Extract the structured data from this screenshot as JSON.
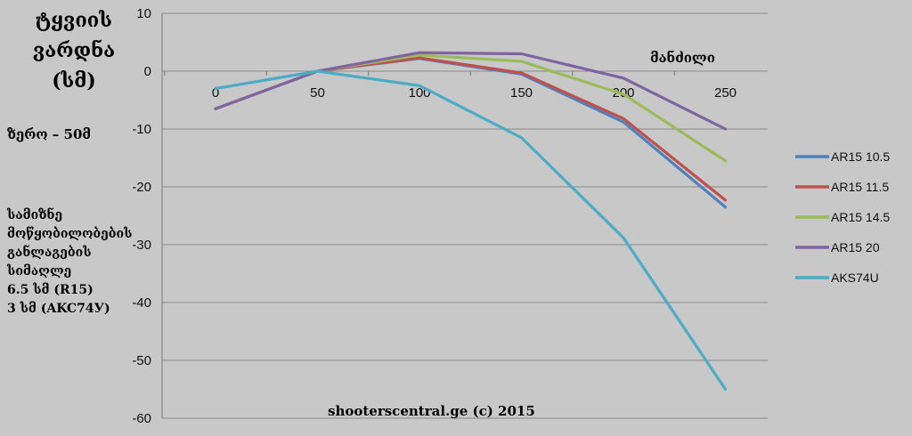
{
  "chart_data": {
    "type": "line",
    "title_lines": [
      "ტყვიის",
      "ვარდნა",
      "(სმ)"
    ],
    "xlabel": "მანძილი",
    "zero_note": "ზერო – 50მ",
    "sight_height_note": [
      "სამიზნე",
      "მოწყობილობების",
      "განლაგების",
      "სიმაღლე",
      "6.5 სმ (R15)",
      "3 სმ (AKC74У)"
    ],
    "credit": "shooterscentral.ge (c) 2015",
    "x": [
      0,
      50,
      100,
      150,
      200,
      250
    ],
    "xticks": [
      "0",
      "50",
      "100",
      "150",
      "200",
      "250"
    ],
    "ylim": [
      -60,
      10
    ],
    "yticks": [
      "10",
      "0",
      "-10",
      "-20",
      "-30",
      "-40",
      "-50",
      "-60"
    ],
    "grid": true,
    "legend_position": "right",
    "series": [
      {
        "name": "AR15 10.5",
        "color": "#4f81bd",
        "values": [
          -6.5,
          0,
          2.2,
          -0.5,
          -8.8,
          -23.5
        ]
      },
      {
        "name": "AR15 11.5",
        "color": "#c0504d",
        "values": [
          -6.5,
          0,
          2.3,
          -0.3,
          -8.2,
          -22.3
        ]
      },
      {
        "name": "AR15 14.5",
        "color": "#9bbb59",
        "values": [
          -6.5,
          0,
          2.8,
          1.7,
          -4.0,
          -15.5
        ]
      },
      {
        "name": "AR15 20",
        "color": "#8064a2",
        "values": [
          -6.5,
          0,
          3.2,
          3.0,
          -1.2,
          -10.0
        ]
      },
      {
        "name": "AKS74U",
        "color": "#4bacc6",
        "values": [
          -3.0,
          0,
          -2.5,
          -11.5,
          -28.8,
          -55.0
        ]
      }
    ]
  }
}
